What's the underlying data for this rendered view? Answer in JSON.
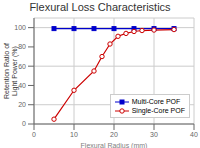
{
  "chart_data": {
    "type": "line",
    "title": "Flexural Loss Characteristics",
    "xlabel": "Flexural Radius (mm)",
    "ylabel": "Retention Ratio of\nLight Power (%)",
    "xlim": [
      0,
      40
    ],
    "ylim": [
      0,
      110
    ],
    "xticks": [
      0,
      10,
      20,
      30,
      40
    ],
    "yticks": [
      0,
      20,
      40,
      60,
      80,
      100
    ],
    "grid": true,
    "legend": "lower right",
    "series": [
      {
        "name": "Multi-Core POF",
        "color": "#0000cc",
        "marker": "square",
        "x": [
          5,
          10,
          15,
          20,
          25,
          30,
          35
        ],
        "values": [
          99,
          99,
          99,
          99,
          99,
          99,
          99
        ]
      },
      {
        "name": "Single-Core POF",
        "color": "#cc0000",
        "marker": "circle",
        "x": [
          5,
          10,
          15,
          17,
          19,
          21,
          23,
          25,
          27,
          30,
          35
        ],
        "values": [
          5,
          35,
          55,
          70,
          83,
          91,
          94,
          96,
          97,
          97.5,
          98
        ]
      }
    ]
  }
}
